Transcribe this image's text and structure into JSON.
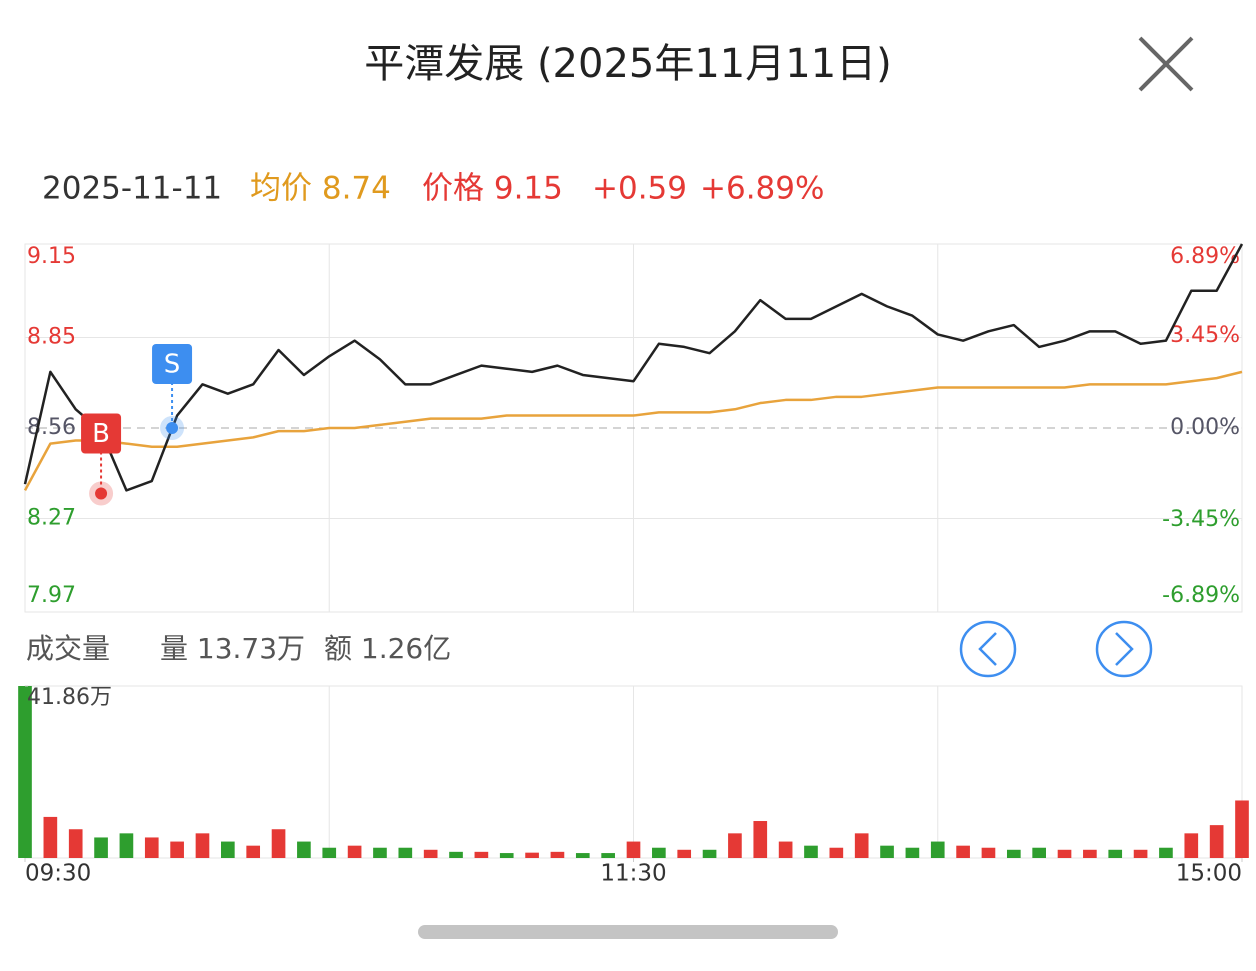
{
  "header": {
    "title": "平潭发展 (2025年11月11日)"
  },
  "info": {
    "date": "2025-11-11",
    "avg": "均价 8.74",
    "price": "价格 9.15",
    "change": "+0.59",
    "change_pct": "+6.89%"
  },
  "chart_data": {
    "type": "line",
    "x": [
      0,
      5,
      10,
      15,
      20,
      25,
      30,
      35,
      40,
      45,
      50,
      55,
      60,
      65,
      70,
      75,
      80,
      85,
      90,
      95,
      100,
      105,
      110,
      115,
      120,
      125,
      130,
      135,
      140,
      145,
      150,
      155,
      160,
      165,
      170,
      175,
      180,
      185,
      190,
      195,
      200,
      205,
      210,
      215,
      220,
      225,
      230,
      235,
      240
    ],
    "xlim": [
      0,
      240
    ],
    "xticks": [
      {
        "value": 0,
        "label": "09:30"
      },
      {
        "value": 120,
        "label": "11:30"
      },
      {
        "value": 240,
        "label": "15:00"
      }
    ],
    "xgrid": [
      60,
      120,
      180
    ],
    "series": [
      {
        "name": "价格",
        "color": "#222222",
        "values": [
          8.38,
          8.74,
          8.62,
          8.55,
          8.36,
          8.39,
          8.6,
          8.7,
          8.67,
          8.7,
          8.81,
          8.73,
          8.79,
          8.84,
          8.78,
          8.7,
          8.7,
          8.73,
          8.76,
          8.75,
          8.74,
          8.76,
          8.73,
          8.72,
          8.71,
          8.83,
          8.82,
          8.8,
          8.87,
          8.97,
          8.91,
          8.91,
          8.95,
          8.99,
          8.95,
          8.92,
          8.86,
          8.84,
          8.87,
          8.89,
          8.82,
          8.84,
          8.87,
          8.87,
          8.83,
          8.84,
          9.0,
          9.0,
          9.15
        ]
      },
      {
        "name": "均价",
        "color": "#e8a33c",
        "values": [
          8.36,
          8.51,
          8.52,
          8.52,
          8.51,
          8.5,
          8.5,
          8.51,
          8.52,
          8.53,
          8.55,
          8.55,
          8.56,
          8.56,
          8.57,
          8.58,
          8.59,
          8.59,
          8.59,
          8.6,
          8.6,
          8.6,
          8.6,
          8.6,
          8.6,
          8.61,
          8.61,
          8.61,
          8.62,
          8.64,
          8.65,
          8.65,
          8.66,
          8.66,
          8.67,
          8.68,
          8.69,
          8.69,
          8.69,
          8.69,
          8.69,
          8.69,
          8.7,
          8.7,
          8.7,
          8.7,
          8.71,
          8.72,
          8.74
        ]
      }
    ],
    "ylim": [
      7.97,
      9.15
    ],
    "yticks": [
      9.15,
      8.85,
      8.56,
      8.27,
      7.97
    ],
    "y2lim": [
      -6.89,
      6.89
    ],
    "y2ticks": [
      {
        "value": 6.89,
        "label": "6.89%"
      },
      {
        "value": 3.45,
        "label": "3.45%"
      },
      {
        "value": 0,
        "label": "0.00%"
      },
      {
        "value": -3.45,
        "label": "-3.45%"
      },
      {
        "value": -6.89,
        "label": "-6.89%"
      }
    ],
    "markers": [
      {
        "label": "B",
        "x": 15,
        "price": 8.35,
        "color": "#e53935"
      },
      {
        "label": "S",
        "x": 29,
        "price": 8.56,
        "color": "#3d8ef0"
      }
    ],
    "volume": {
      "title": "成交量",
      "amount": "量 13.73万",
      "turnover": "额 1.26亿",
      "ylim": [
        0,
        41.86
      ],
      "yticks": [
        {
          "value": 41.86,
          "label": "41.86万"
        }
      ],
      "values": [
        41.86,
        10,
        7,
        5,
        6,
        5,
        4,
        6,
        4,
        3,
        7,
        4,
        2.5,
        3,
        2.5,
        2.5,
        2,
        1.5,
        1.5,
        1.2,
        1.3,
        1.5,
        1.2,
        1.2,
        4,
        2.5,
        2,
        2,
        6,
        9,
        4,
        3,
        2.5,
        6,
        3,
        2.5,
        4,
        3,
        2.5,
        2,
        2.5,
        2,
        2,
        2,
        2,
        2.5,
        6,
        8,
        14
      ],
      "colors": [
        "#2e9e2e",
        "#e53935",
        "#e53935",
        "#2e9e2e",
        "#2e9e2e",
        "#e53935",
        "#e53935",
        "#e53935",
        "#2e9e2e",
        "#e53935",
        "#e53935",
        "#2e9e2e",
        "#2e9e2e",
        "#e53935",
        "#2e9e2e",
        "#2e9e2e",
        "#e53935",
        "#2e9e2e",
        "#e53935",
        "#2e9e2e",
        "#e53935",
        "#e53935",
        "#2e9e2e",
        "#2e9e2e",
        "#e53935",
        "#2e9e2e",
        "#e53935",
        "#2e9e2e",
        "#e53935",
        "#e53935",
        "#e53935",
        "#2e9e2e",
        "#e53935",
        "#e53935",
        "#2e9e2e",
        "#2e9e2e",
        "#2e9e2e",
        "#e53935",
        "#e53935",
        "#2e9e2e",
        "#2e9e2e",
        "#e53935",
        "#e53935",
        "#2e9e2e",
        "#e53935",
        "#2e9e2e",
        "#e53935",
        "#e53935",
        "#e53935"
      ]
    }
  }
}
